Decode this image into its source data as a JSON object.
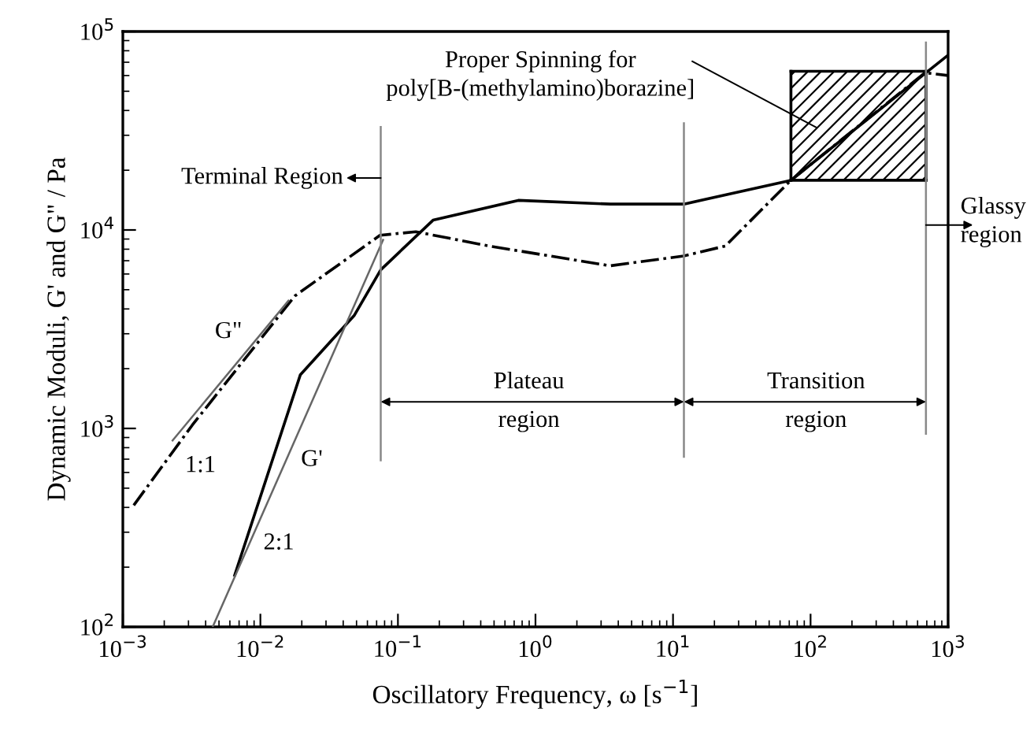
{
  "chart_data": {
    "type": "line",
    "xlabel": "Oscillatory Frequency, ω [s$^{−1}$]",
    "ylabel": "Dynamic Moduli, G' and G\" / Pa",
    "log": "xy",
    "xlim": [
      0.001,
      1000
    ],
    "ylim": [
      100,
      100000
    ],
    "xticks": [
      {
        "value": 0.001,
        "label": "10$^{−3}$"
      },
      {
        "value": 0.01,
        "label": "10$^{−2}$"
      },
      {
        "value": 0.1,
        "label": "10$^{−1}$"
      },
      {
        "value": 1,
        "label": "10$^{0}$"
      },
      {
        "value": 10,
        "label": "10$^{1}$"
      },
      {
        "value": 100,
        "label": "10$^{2}$"
      },
      {
        "value": 1000,
        "label": "10$^{3}$"
      }
    ],
    "yticks": [
      {
        "value": 100,
        "label": "10$^{2}$"
      },
      {
        "value": 1000,
        "label": "10$^{3}$"
      },
      {
        "value": 10000,
        "label": "10$^{4}$"
      },
      {
        "value": 100000,
        "label": "10$^{5}$"
      }
    ],
    "grid": false,
    "legend": false,
    "marker": "none",
    "series": [
      {
        "color": "#000000",
        "line_style": "solid",
        "x": [
          72,
          690
        ],
        "values": [
          63000,
          63000
        ]
      },
      {
        "color": "#000000",
        "line_style": "solid",
        "x": [
          72,
          690
        ],
        "values": [
          17800,
          17800
        ]
      },
      {
        "color": "#000000",
        "line_style": "solid",
        "x": [
          72,
          72
        ],
        "values": [
          17800,
          63000
        ]
      },
      {
        "color": "#000000",
        "line_style": "solid",
        "x": [
          690,
          690
        ],
        "values": [
          17800,
          63000
        ]
      },
      {
        "color": "#000000",
        "line_style": "solid",
        "x": [
          0.0065,
          0.0195,
          0.048,
          0.075,
          0.18,
          0.75,
          3.5,
          12,
          72,
          1000
        ],
        "values": [
          182,
          1860,
          3700,
          6300,
          11200,
          14100,
          13500,
          13500,
          17800,
          76000
        ]
      },
      {
        "color": "#000000",
        "line_style": "dashdot",
        "x": [
          0.0012,
          0.0032,
          0.0178,
          0.074,
          0.135,
          0.46,
          3.5,
          12,
          24,
          72,
          680,
          1000
        ],
        "values": [
          410,
          1040,
          4650,
          9400,
          9800,
          8300,
          6600,
          7400,
          8300,
          17800,
          62000,
          60000
        ]
      },
      {
        "color": "#666666",
        "line_style": "solid",
        "x": [
          0.0023,
          0.016
        ],
        "values": [
          870,
          4400
        ]
      },
      {
        "color": "#666666",
        "line_style": "solid",
        "x": [
          0.0045,
          0.078
        ],
        "values": [
          100,
          8900
        ]
      },
      {
        "color": "#888888",
        "line_style": "solid",
        "x": [
          0.075,
          0.075
        ],
        "values": [
          690,
          33000
        ]
      },
      {
        "color": "#888888",
        "line_style": "solid",
        "x": [
          12,
          12
        ],
        "values": [
          720,
          34500
        ]
      },
      {
        "color": "#888888",
        "line_style": "solid",
        "x": [
          690,
          690
        ],
        "values": [
          940,
          88000
        ]
      }
    ],
    "annotations": [
      "Proper Spinning for\npoly[B-(methylamino)borazine]",
      "Terminal Region",
      "Plateau\nregion",
      "Transition\nregion",
      "Glassy\nregion",
      "G\"",
      "G'",
      "1:1",
      "2:1"
    ]
  }
}
